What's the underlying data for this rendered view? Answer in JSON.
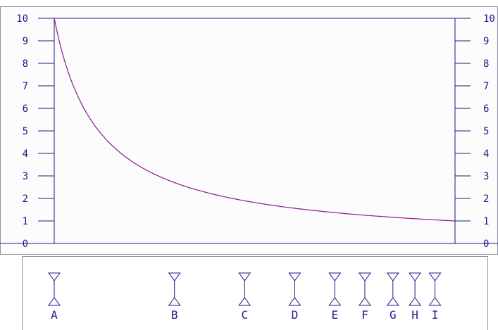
{
  "chart_data": {
    "type": "line",
    "title": "",
    "xlabel": "",
    "ylabel": "",
    "ylim": [
      0,
      10
    ],
    "y_ticks": [
      "0",
      "1",
      "2",
      "3",
      "4",
      "5",
      "6",
      "7",
      "8",
      "9",
      "10"
    ],
    "grid": false,
    "series": [
      {
        "curve": "y = 10 / (1 + 9x)",
        "x": [
          0,
          0.1,
          0.2,
          0.3,
          0.4,
          0.5,
          0.6,
          0.7,
          0.8,
          0.9,
          1.0
        ],
        "y": [
          10,
          5.263,
          3.571,
          2.703,
          2.174,
          1.818,
          1.563,
          1.37,
          1.22,
          1.099,
          1.0
        ]
      }
    ],
    "markers": [
      {
        "label": "A",
        "x": 0
      },
      {
        "label": "B",
        "x": 0.3
      },
      {
        "label": "C",
        "x": 0.475
      },
      {
        "label": "D",
        "x": 0.6
      },
      {
        "label": "E",
        "x": 0.7
      },
      {
        "label": "F",
        "x": 0.775
      },
      {
        "label": "G",
        "x": 0.845
      },
      {
        "label": "H",
        "x": 0.9
      },
      {
        "label": "I",
        "x": 0.95
      }
    ]
  },
  "colors": {
    "axis": "#1a1a8c",
    "curve": "#8b1a8b",
    "frame": "#8f8fa8",
    "plot_bg": "#fcfcfc",
    "page_bg": "#ffffff"
  }
}
